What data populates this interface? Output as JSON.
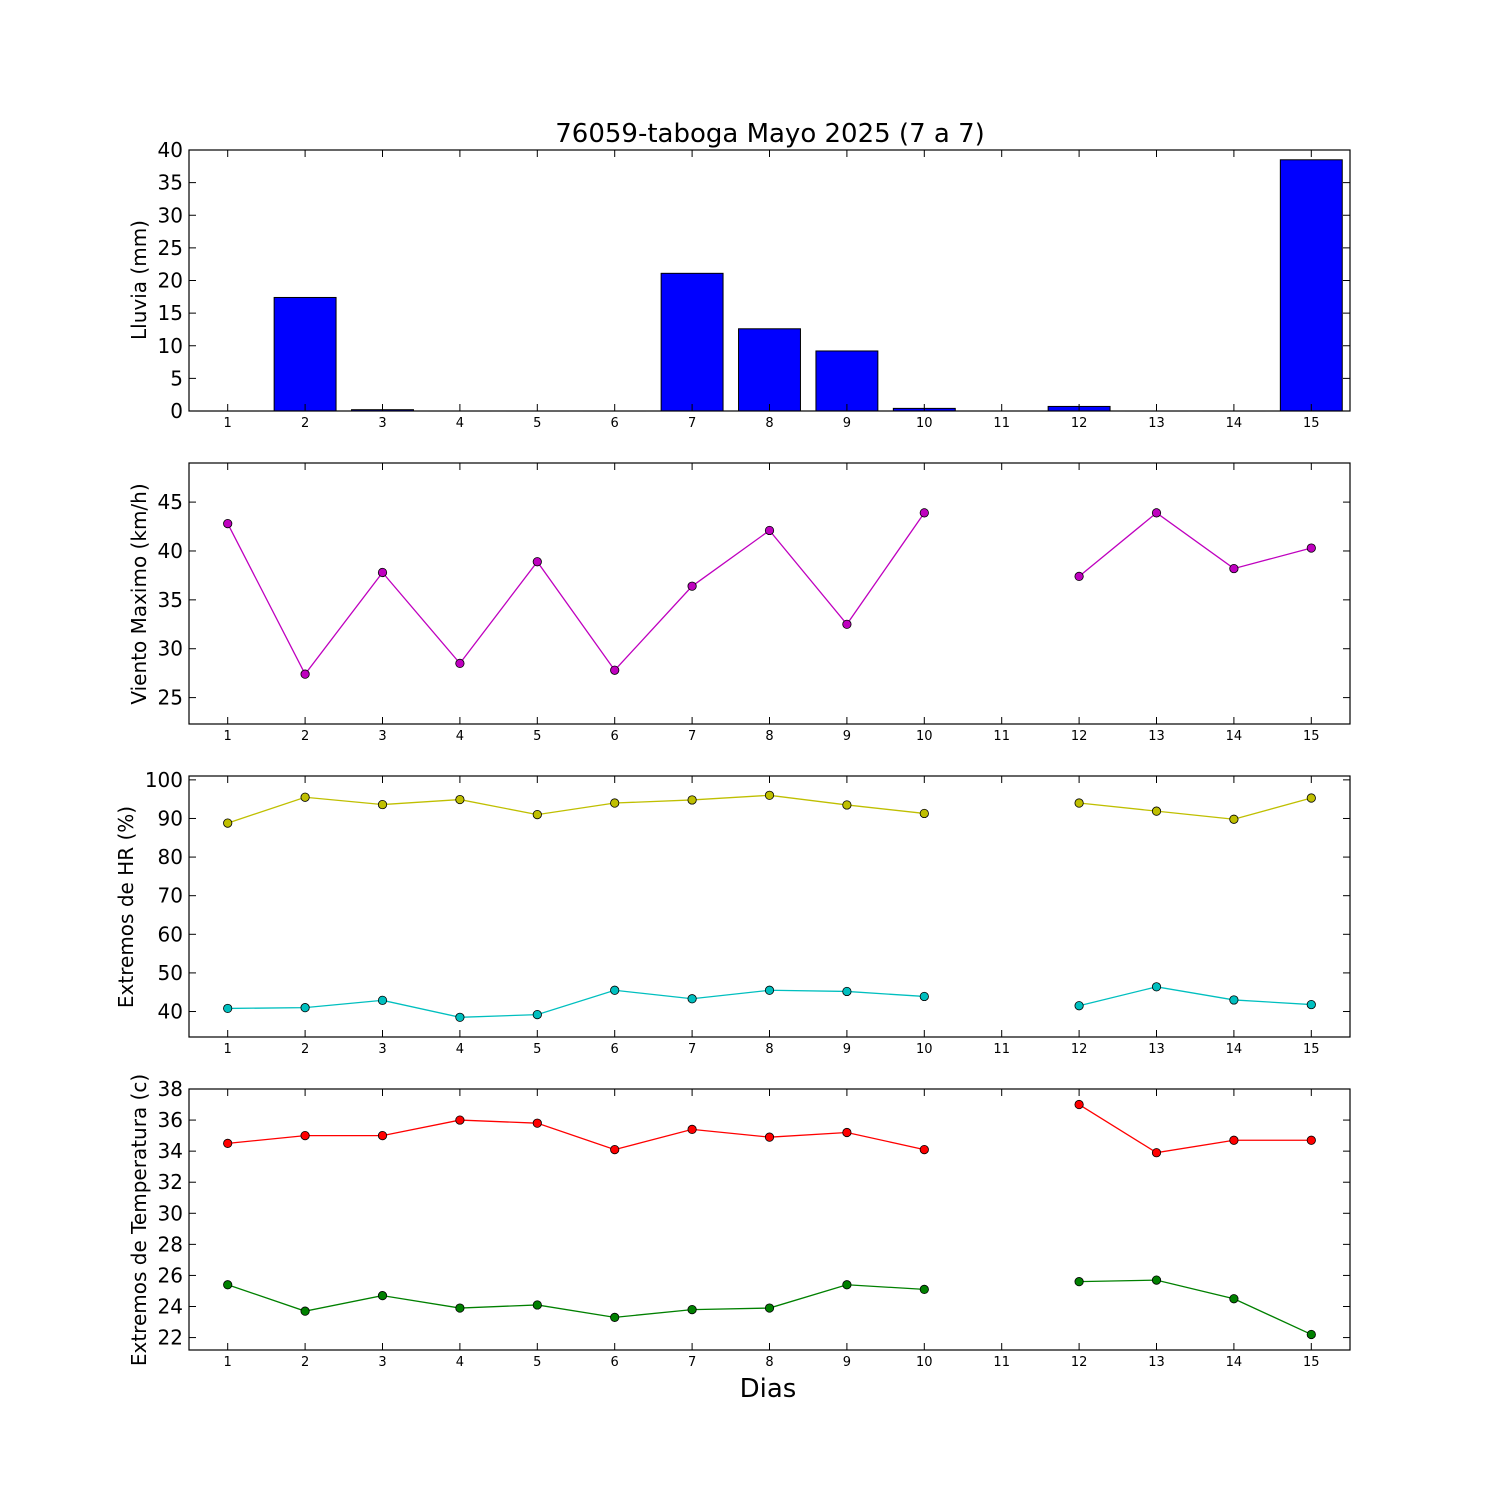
{
  "chart_data": [
    {
      "type": "bar",
      "title": "76059-taboga Mayo 2025  (7 a 7)",
      "ylabel": "Lluvia (mm)",
      "xlabel": "",
      "x": [
        1,
        2,
        3,
        4,
        5,
        6,
        7,
        8,
        9,
        10,
        11,
        12,
        13,
        14,
        15
      ],
      "xlim": [
        0.5,
        15.5
      ],
      "ylim": [
        0,
        40
      ],
      "yticks": [
        0,
        5,
        10,
        15,
        20,
        25,
        30,
        35,
        40
      ],
      "series": [
        {
          "values": [
            0,
            17.4,
            0.2,
            0,
            0,
            0,
            21.1,
            12.6,
            9.2,
            0.4,
            null,
            0.7,
            0,
            0,
            38.5
          ],
          "color": "#0000ff"
        }
      ]
    },
    {
      "type": "line",
      "title": "",
      "ylabel": "Viento Maximo (km/h)",
      "xlabel": "",
      "x": [
        1,
        2,
        3,
        4,
        5,
        6,
        7,
        8,
        9,
        10,
        11,
        12,
        13,
        14,
        15
      ],
      "xlim": [
        0.5,
        15.5
      ],
      "ylim": [
        22.3,
        49
      ],
      "yticks": [
        25,
        30,
        35,
        40,
        45
      ],
      "series": [
        {
          "values": [
            42.8,
            27.4,
            37.8,
            28.5,
            38.9,
            27.8,
            36.4,
            42.1,
            32.5,
            43.9,
            null,
            37.4,
            43.9,
            38.2,
            40.3
          ],
          "color": "#bf00bf"
        }
      ]
    },
    {
      "type": "line",
      "title": "",
      "ylabel": "Extremos de HR (%)",
      "xlabel": "",
      "x": [
        1,
        2,
        3,
        4,
        5,
        6,
        7,
        8,
        9,
        10,
        11,
        12,
        13,
        14,
        15
      ],
      "xlim": [
        0.5,
        15.5
      ],
      "ylim": [
        33.4,
        101
      ],
      "yticks": [
        40,
        50,
        60,
        70,
        80,
        90,
        100
      ],
      "series": [
        {
          "values": [
            88.8,
            95.5,
            93.6,
            94.9,
            91.0,
            94.0,
            94.8,
            96.0,
            93.5,
            91.3,
            null,
            94.0,
            91.9,
            89.8,
            95.3
          ],
          "color": "#bfbf00"
        },
        {
          "values": [
            40.8,
            41.0,
            42.9,
            38.5,
            39.2,
            45.5,
            43.3,
            45.5,
            45.2,
            43.9,
            null,
            41.5,
            46.4,
            43.0,
            41.8
          ],
          "color": "#00bfbf"
        }
      ]
    },
    {
      "type": "line",
      "title": "",
      "ylabel": "Extremos de Temperatura (c)",
      "xlabel": "Dias",
      "x": [
        1,
        2,
        3,
        4,
        5,
        6,
        7,
        8,
        9,
        10,
        11,
        12,
        13,
        14,
        15
      ],
      "xlim": [
        0.5,
        15.5
      ],
      "ylim": [
        21.2,
        38
      ],
      "yticks": [
        22,
        24,
        26,
        28,
        30,
        32,
        34,
        36,
        38
      ],
      "series": [
        {
          "values": [
            34.5,
            35.0,
            35.0,
            36.0,
            35.8,
            34.1,
            35.4,
            34.9,
            35.2,
            34.1,
            null,
            37.0,
            33.9,
            34.7,
            34.7
          ],
          "color": "#ff0000"
        },
        {
          "values": [
            25.4,
            23.7,
            24.7,
            23.9,
            24.1,
            23.3,
            23.8,
            23.9,
            25.4,
            25.1,
            null,
            25.6,
            25.7,
            24.5,
            22.2
          ],
          "color": "#008000"
        }
      ]
    }
  ]
}
